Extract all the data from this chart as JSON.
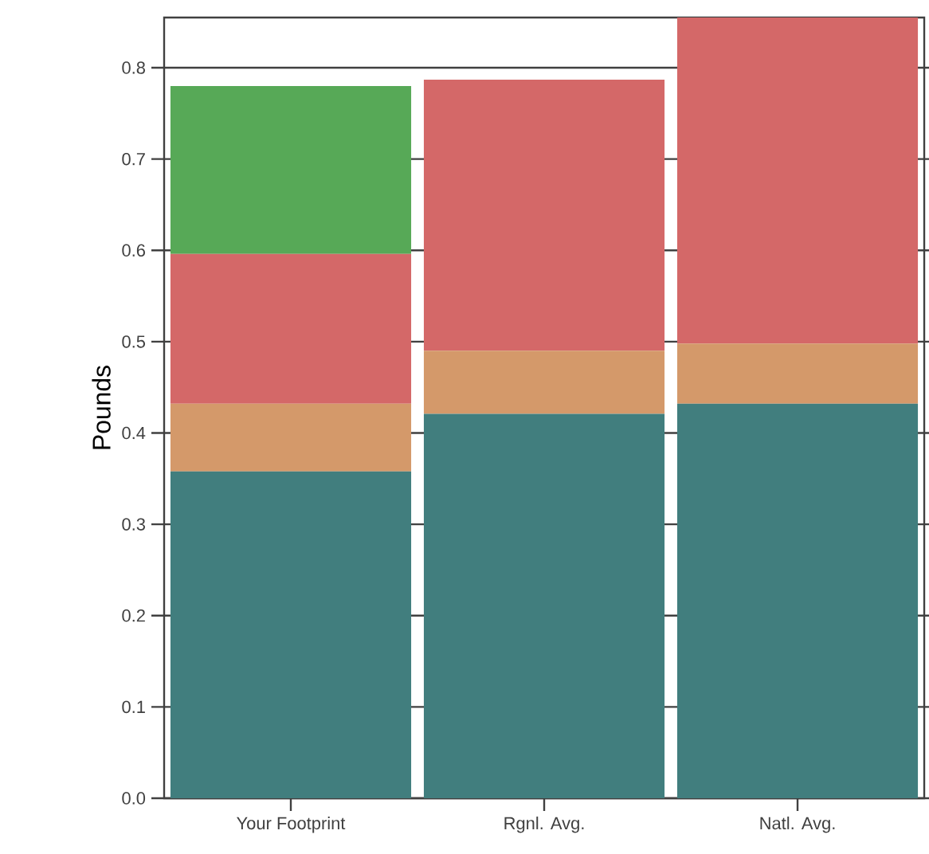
{
  "chart_data": {
    "type": "bar",
    "ylabel": "Pounds",
    "stacked": true,
    "grid": "y",
    "categories": [
      "Your Footprint",
      "Rgnl. Avg.",
      "Natl. Avg."
    ],
    "series": [
      {
        "color": "#417e7e",
        "values": [
          0.358,
          0.421,
          0.432
        ]
      },
      {
        "color": "#d4996a",
        "values": [
          0.074,
          0.069,
          0.066
        ]
      },
      {
        "color": "#d46868",
        "values": [
          0.164,
          0.297,
          0.357
        ]
      },
      {
        "color": "#57a957",
        "values": [
          0.184,
          0,
          0
        ]
      }
    ],
    "ylim": [
      0,
      0.855
    ],
    "yticks": [
      {
        "value": 0,
        "label": "0.0"
      },
      0.1,
      0.2,
      0.3,
      0.4,
      0.5,
      0.6,
      0.7,
      0.8
    ]
  }
}
